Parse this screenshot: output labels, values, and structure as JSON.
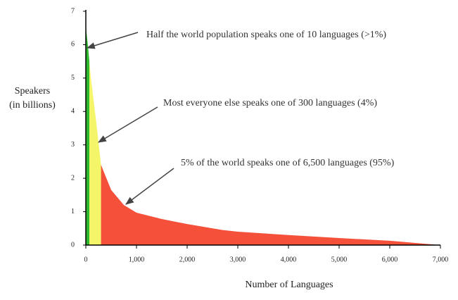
{
  "chart_data": {
    "type": "area",
    "xlabel": "Number of Languages",
    "ylabel": [
      "Speakers",
      "(in billions)"
    ],
    "series": [
      {
        "color": "#2db82d",
        "x": [
          0,
          10,
          40,
          70
        ],
        "values": [
          6.9,
          6.4,
          6.0,
          5.5
        ]
      },
      {
        "color": "#f5f56a",
        "x": [
          70,
          100,
          200,
          300
        ],
        "values": [
          5.5,
          5.0,
          3.75,
          2.4
        ]
      },
      {
        "color": "#f4503a",
        "x": [
          300,
          500,
          750,
          1000,
          1500,
          2000,
          2700,
          3000,
          4000,
          5000,
          6000,
          7000
        ],
        "values": [
          2.4,
          1.65,
          1.2,
          0.97,
          0.78,
          0.63,
          0.45,
          0.4,
          0.3,
          0.21,
          0.13,
          0
        ]
      }
    ],
    "xlim": [
      0,
      7000
    ],
    "ylim": [
      0,
      7
    ],
    "xticks": [
      0,
      {
        "value": 1000,
        "label": "1,000"
      },
      {
        "value": 2000,
        "label": "2,000"
      },
      {
        "value": 3000,
        "label": "3,000"
      },
      {
        "value": 4000,
        "label": "4,000"
      },
      {
        "value": 5000,
        "label": "5,000"
      },
      {
        "value": 6000,
        "label": "6,000"
      },
      {
        "value": 7000,
        "label": "7,000"
      }
    ],
    "yticks": [
      0,
      1,
      2,
      3,
      4,
      5,
      6,
      7
    ],
    "annotations": [
      "Half the world population speaks one of 10 languages (>1%)",
      "Most everyone else speaks one of 300 languages (4%)",
      "5% of the world speaks one of 6,500 languages (95%)"
    ]
  }
}
